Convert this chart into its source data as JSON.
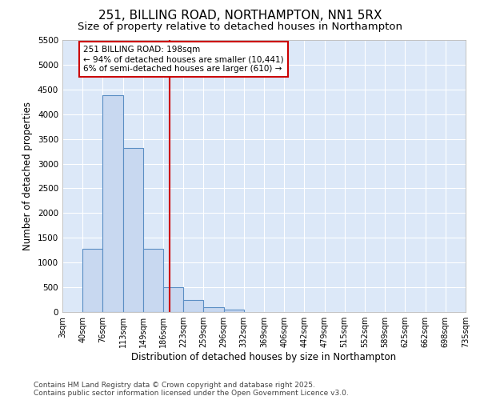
{
  "title1": "251, BILLING ROAD, NORTHAMPTON, NN1 5RX",
  "title2": "Size of property relative to detached houses in Northampton",
  "xlabel": "Distribution of detached houses by size in Northampton",
  "ylabel": "Number of detached properties",
  "bin_edges": [
    3,
    40,
    76,
    113,
    149,
    186,
    223,
    259,
    296,
    332,
    369,
    406,
    442,
    479,
    515,
    552,
    589,
    625,
    662,
    698,
    735
  ],
  "bar_heights": [
    0,
    1270,
    4380,
    3320,
    1280,
    500,
    240,
    90,
    50,
    0,
    0,
    0,
    0,
    0,
    0,
    0,
    0,
    0,
    0,
    0
  ],
  "bar_color": "#c8d8f0",
  "bar_edge_color": "#5b8ec4",
  "vline_x": 198,
  "vline_color": "#cc0000",
  "annotation_text": "251 BILLING ROAD: 198sqm\n← 94% of detached houses are smaller (10,441)\n6% of semi-detached houses are larger (610) →",
  "annotation_box_color": "#cc0000",
  "ylim": [
    0,
    5500
  ],
  "yticks": [
    0,
    500,
    1000,
    1500,
    2000,
    2500,
    3000,
    3500,
    4000,
    4500,
    5000,
    5500
  ],
  "footer_line1": "Contains HM Land Registry data © Crown copyright and database right 2025.",
  "footer_line2": "Contains public sector information licensed under the Open Government Licence v3.0.",
  "plot_bg_color": "#dce8f8",
  "fig_bg_color": "#ffffff",
  "grid_color": "#ffffff",
  "title1_fontsize": 11,
  "title2_fontsize": 9.5,
  "tick_label_fontsize": 7,
  "axis_label_fontsize": 8.5,
  "footer_fontsize": 6.5,
  "annotation_fontsize": 7.5
}
